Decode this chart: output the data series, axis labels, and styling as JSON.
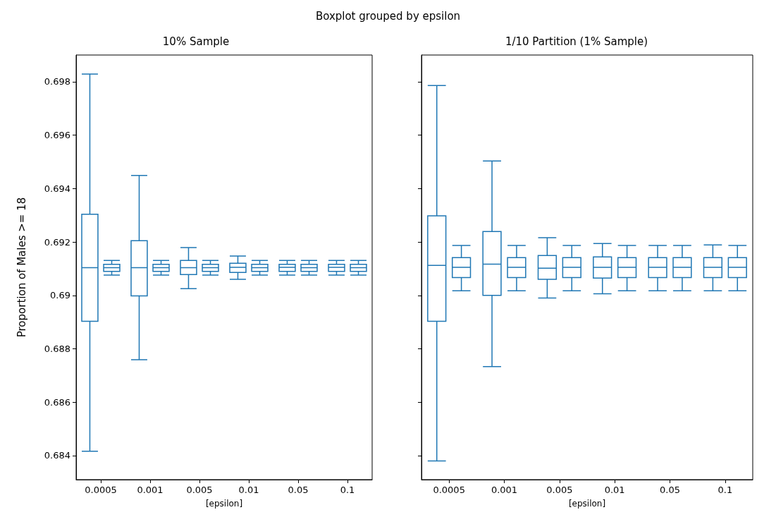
{
  "chart_data": [
    {
      "type": "box",
      "title": "10% Sample",
      "annotations": [
        "Boxplot grouped by epsilon"
      ],
      "xlabel": "[epsilon]",
      "ylabel": "Proportion of Males >= 18",
      "categories": [
        "0.0005",
        "0.001",
        "0.005",
        "0.01",
        "0.05",
        "0.1"
      ],
      "ylim": [
        0.6831,
        0.699
      ],
      "yticks": [
        0.684,
        0.686,
        0.688,
        0.69,
        0.692,
        0.694,
        0.696,
        0.698
      ],
      "series": [
        {
          "color": "#1f77b4",
          "boxes": [
            {
              "low": 0.68416,
              "q1": 0.68903,
              "median": 0.69104,
              "q3": 0.69304,
              "high": 0.69829
            },
            {
              "low": 0.68759,
              "q1": 0.68998,
              "median": 0.69104,
              "q3": 0.69205,
              "high": 0.69449
            },
            {
              "low": 0.69025,
              "q1": 0.69078,
              "median": 0.69104,
              "q3": 0.69131,
              "high": 0.69179
            },
            {
              "low": 0.6906,
              "q1": 0.69086,
              "median": 0.69105,
              "q3": 0.6912,
              "high": 0.69147
            },
            {
              "low": 0.69076,
              "q1": 0.6909,
              "median": 0.69105,
              "q3": 0.69116,
              "high": 0.69131
            },
            {
              "low": 0.69076,
              "q1": 0.6909,
              "median": 0.69105,
              "q3": 0.69116,
              "high": 0.69131
            }
          ]
        },
        {
          "color": "#1f77b4",
          "boxes": [
            {
              "low": 0.69076,
              "q1": 0.6909,
              "median": 0.69104,
              "q3": 0.69116,
              "high": 0.69131
            },
            {
              "low": 0.69076,
              "q1": 0.6909,
              "median": 0.69104,
              "q3": 0.69116,
              "high": 0.69131
            },
            {
              "low": 0.69076,
              "q1": 0.6909,
              "median": 0.69104,
              "q3": 0.69116,
              "high": 0.69131
            },
            {
              "low": 0.69076,
              "q1": 0.6909,
              "median": 0.69104,
              "q3": 0.69116,
              "high": 0.69131
            },
            {
              "low": 0.69076,
              "q1": 0.6909,
              "median": 0.69104,
              "q3": 0.69116,
              "high": 0.69131
            },
            {
              "low": 0.69076,
              "q1": 0.6909,
              "median": 0.69104,
              "q3": 0.69116,
              "high": 0.69131
            }
          ]
        }
      ]
    },
    {
      "type": "box",
      "title": "1/10 Partition (1% Sample)",
      "xlabel": "[epsilon]",
      "categories": [
        "0.0005",
        "0.001",
        "0.005",
        "0.01",
        "0.05",
        "0.1"
      ],
      "ylim": [
        0.6831,
        0.699
      ],
      "yticks": [
        0.684,
        0.686,
        0.688,
        0.69,
        0.692,
        0.694,
        0.696,
        0.698
      ],
      "tick_labels": "x",
      "series": [
        {
          "color": "#1f77b4",
          "boxes": [
            {
              "low": 0.6838,
              "q1": 0.68903,
              "median": 0.69112,
              "q3": 0.69298,
              "high": 0.69786
            },
            {
              "low": 0.68733,
              "q1": 0.69,
              "median": 0.69117,
              "q3": 0.69239,
              "high": 0.69503
            },
            {
              "low": 0.6899,
              "q1": 0.6906,
              "median": 0.69102,
              "q3": 0.69149,
              "high": 0.69216
            },
            {
              "low": 0.69006,
              "q1": 0.69065,
              "median": 0.69105,
              "q3": 0.69144,
              "high": 0.69194
            },
            {
              "low": 0.69017,
              "q1": 0.69067,
              "median": 0.69105,
              "q3": 0.69141,
              "high": 0.69187
            },
            {
              "low": 0.69017,
              "q1": 0.69067,
              "median": 0.69105,
              "q3": 0.69141,
              "high": 0.69189
            }
          ]
        },
        {
          "color": "#1f77b4",
          "boxes": [
            {
              "low": 0.69017,
              "q1": 0.69067,
              "median": 0.69105,
              "q3": 0.69141,
              "high": 0.69187
            },
            {
              "low": 0.69017,
              "q1": 0.69067,
              "median": 0.69105,
              "q3": 0.69141,
              "high": 0.69187
            },
            {
              "low": 0.69017,
              "q1": 0.69067,
              "median": 0.69105,
              "q3": 0.69141,
              "high": 0.69187
            },
            {
              "low": 0.69017,
              "q1": 0.69067,
              "median": 0.69105,
              "q3": 0.69141,
              "high": 0.69187
            },
            {
              "low": 0.69017,
              "q1": 0.69067,
              "median": 0.69105,
              "q3": 0.69141,
              "high": 0.69187
            },
            {
              "low": 0.69017,
              "q1": 0.69067,
              "median": 0.69105,
              "q3": 0.69141,
              "high": 0.69187
            }
          ]
        }
      ]
    }
  ]
}
